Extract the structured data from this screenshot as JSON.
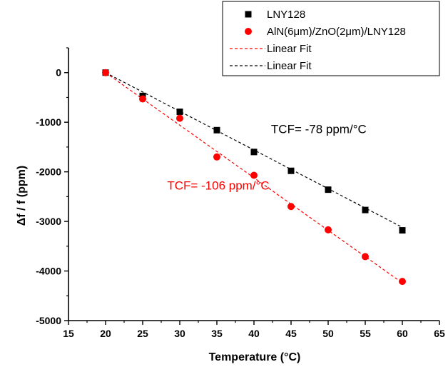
{
  "chart_data": {
    "type": "scatter",
    "xlabel": "Temperature (°C)",
    "ylabel": "Δf / f (ppm)",
    "xlim": [
      15,
      65
    ],
    "ylim": [
      -5000,
      500
    ],
    "x_ticks": [
      15,
      20,
      25,
      30,
      35,
      40,
      45,
      50,
      55,
      60,
      65
    ],
    "y_ticks": [
      0,
      -1000,
      -2000,
      -3000,
      -4000,
      -5000
    ],
    "x": [
      20,
      25,
      30,
      35,
      40,
      45,
      50,
      55,
      60
    ],
    "series": [
      {
        "name": "LNY128",
        "marker": "square",
        "color": "#000000",
        "values": [
          0,
          -470,
          -790,
          -1160,
          -1600,
          -1980,
          -2360,
          -2770,
          -3180
        ]
      },
      {
        "name": "AlN(6μm)/ZnO(2μm)/LNY128",
        "marker": "circle",
        "color": "#ff0000",
        "values": [
          0,
          -530,
          -920,
          -1700,
          -2070,
          -2700,
          -3170,
          -3710,
          -4210
        ]
      }
    ],
    "fits": [
      {
        "name": "Linear Fit",
        "color": "#ff0000",
        "style": "dashed",
        "x": [
          20,
          60
        ],
        "y": [
          0,
          -4240
        ]
      },
      {
        "name": "Linear Fit",
        "color": "#000000",
        "style": "dashed",
        "x": [
          20,
          60
        ],
        "y": [
          0,
          -3120
        ]
      }
    ],
    "legend_placement": "top-right",
    "annotations": [
      {
        "text": "TCF= -78 ppm/°C",
        "color": "#000000",
        "x": 42.3,
        "y": -1220
      },
      {
        "text": "TCF= -106 ppm/°C",
        "color": "#ff0000",
        "x": 28.3,
        "y": -2360
      }
    ],
    "grid": false
  }
}
